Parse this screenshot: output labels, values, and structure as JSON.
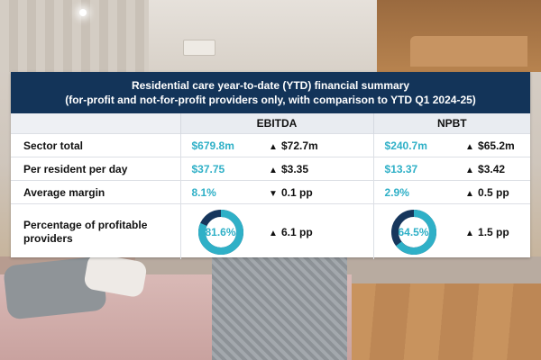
{
  "header": {
    "title": "Residential care year-to-date (YTD) financial summary",
    "subtitle": "(for-profit and not-for-profit providers only, with comparison to YTD Q1 2024-25)"
  },
  "columns": {
    "ebitda": "EBITDA",
    "npbt": "NPBT"
  },
  "rows": [
    {
      "label": "Sector total",
      "ebitda_value": "$679.8m",
      "ebitda_arrow": "up",
      "ebitda_change": "$72.7m",
      "npbt_value": "$240.7m",
      "npbt_arrow": "up",
      "npbt_change": "$65.2m"
    },
    {
      "label": "Per resident per day",
      "ebitda_value": "$37.75",
      "ebitda_arrow": "up",
      "ebitda_change": "$3.35",
      "npbt_value": "$13.37",
      "npbt_arrow": "up",
      "npbt_change": "$3.42"
    },
    {
      "label": "Average margin",
      "ebitda_value": "8.1%",
      "ebitda_arrow": "down",
      "ebitda_change": "0.1 pp",
      "npbt_value": "2.9%",
      "npbt_arrow": "up",
      "npbt_change": "0.5 pp"
    }
  ],
  "profitable": {
    "label_line1": "Percentage of profitable",
    "label_line2": "providers",
    "ebitda_value": "81.6%",
    "ebitda_fraction": 0.816,
    "ebitda_arrow": "up",
    "ebitda_change": "6.1 pp",
    "npbt_value": "64.5%",
    "npbt_fraction": 0.645,
    "npbt_arrow": "up",
    "npbt_change": "1.5 pp"
  },
  "colors": {
    "header_bg": "#133459",
    "value_teal": "#2fb0c7",
    "donut_remainder": "#16365c"
  },
  "icons": {
    "up": "triangle-up-icon",
    "down": "triangle-down-icon"
  }
}
